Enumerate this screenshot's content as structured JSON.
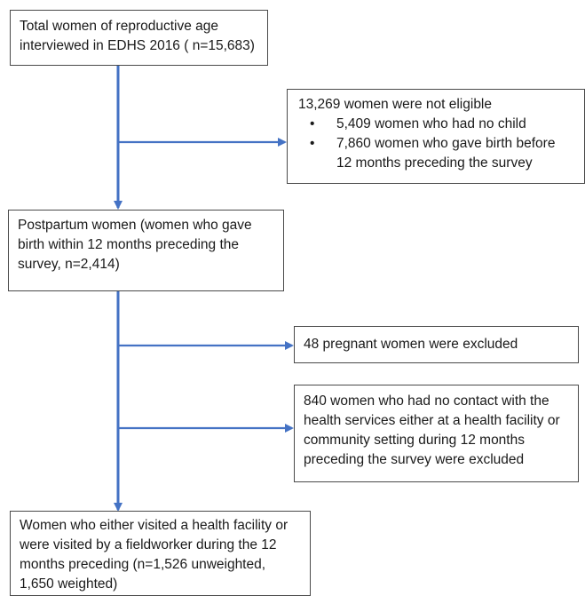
{
  "boxes": {
    "total": {
      "text": "Total women of reproductive age interviewed in EDHS 2016 ( n=15,683)"
    },
    "not_eligible": {
      "title": "13,269 women were not eligible",
      "bullets": [
        "5,409 women who  had no child",
        "7,860 women who gave birth before 12 months preceding the survey"
      ]
    },
    "postpartum": {
      "text": "Postpartum women (women who gave birth within 12 months preceding the survey, n=2,414)"
    },
    "pregnant": {
      "text": "48 pregnant women were excluded"
    },
    "no_contact": {
      "text": "840 women who had no contact with the health services either at a health facility or community setting during  12 months preceding the survey were excluded"
    },
    "final": {
      "text": "Women who either visited a health facility or were visited by a fieldworker during the 12 months  preceding (n=1,526 unweighted, 1,650 weighted)"
    }
  },
  "colors": {
    "arrow": "#4472c4",
    "border": "#4a4a4a"
  },
  "bullet_glyph": "•"
}
